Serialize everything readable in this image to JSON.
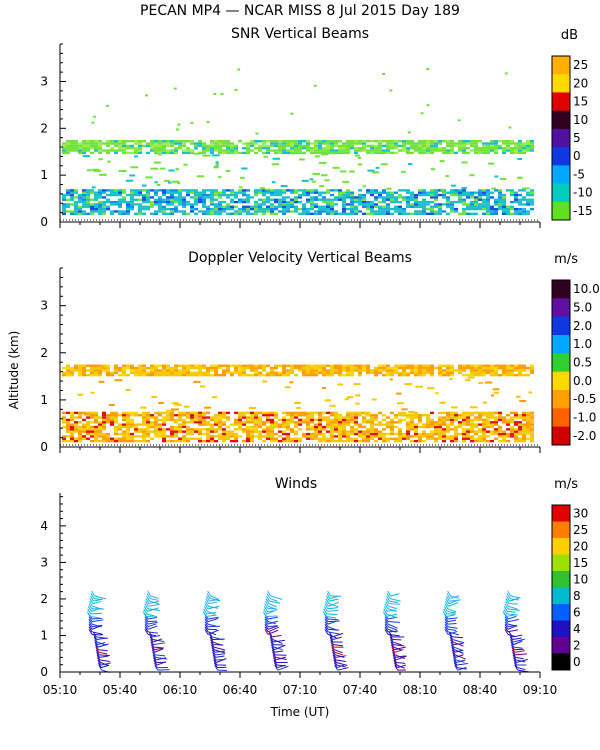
{
  "header": {
    "title": "PECAN MP4 — NCAR MISS    8 Jul 2015 Day 189"
  },
  "colors": {
    "snr_green": "#6fe33b",
    "snr_teal": "#18c0c8",
    "snr_blue": "#1450e6",
    "dop_yellow": "#f5c800",
    "dop_orange": "#ff9a00",
    "dop_red": "#e01010"
  },
  "chart_data": [
    {
      "type": "heatmap",
      "title": "SNR Vertical Beams",
      "ylabel": "",
      "ylim": [
        0,
        3.8
      ],
      "yticks": [
        "0",
        "1",
        "2",
        "3"
      ],
      "xlabel": "",
      "colorbar": {
        "unit": "dB",
        "labels": [
          "25",
          "20",
          "15",
          "10",
          "5",
          "0",
          "-5",
          "-10",
          "-15"
        ],
        "colors": [
          "#ffb000",
          "#ffd800",
          "#e00000",
          "#300020",
          "#5010a0",
          "#1038e0",
          "#00a8ff",
          "#00ccc0",
          "#60e020"
        ]
      },
      "layers": [
        {
          "name": "lower return layer",
          "bottom_km": 0.15,
          "top_km": 0.7,
          "dominant": "teal/blue"
        },
        {
          "name": "upper return layer",
          "bottom_km": 1.45,
          "top_km": 1.75,
          "dominant": "green"
        }
      ]
    },
    {
      "type": "heatmap",
      "title": "Doppler Velocity Vertical Beams",
      "ylabel": "Altitude (km)",
      "ylim": [
        0,
        3.8
      ],
      "yticks": [
        "0",
        "1",
        "2",
        "3"
      ],
      "colorbar": {
        "unit": "m/s",
        "labels": [
          "10.0",
          "5.0",
          "2.0",
          "1.0",
          "0.5",
          "0.0",
          "-0.5",
          "-1.0",
          "-2.0"
        ],
        "colors": [
          "#300020",
          "#6010a0",
          "#1038e0",
          "#00a8ff",
          "#30d030",
          "#ffd800",
          "#ffa000",
          "#ff6000",
          "#d00000"
        ]
      },
      "layers": [
        {
          "name": "lower return layer",
          "bottom_km": 0.1,
          "top_km": 0.75,
          "dominant": "yellow/orange"
        },
        {
          "name": "upper return layer",
          "bottom_km": 1.5,
          "top_km": 1.75,
          "dominant": "yellow"
        }
      ]
    },
    {
      "type": "scatter",
      "title": "Winds",
      "xlabel": "Time (UT)",
      "ylabel": "",
      "ylim": [
        0,
        4.9
      ],
      "yticks": [
        "0",
        "1",
        "2",
        "3",
        "4"
      ],
      "x": [
        "05:10",
        "05:40",
        "06:10",
        "06:40",
        "07:10",
        "07:40",
        "08:10",
        "08:40",
        "09:10"
      ],
      "xlim": [
        "05:10",
        "09:10"
      ],
      "colorbar": {
        "unit": "m/s",
        "labels": [
          "30",
          "25",
          "20",
          "15",
          "10",
          "8",
          "6",
          "4",
          "2",
          "0"
        ],
        "colors": [
          "#e00000",
          "#ff8000",
          "#ffd000",
          "#a0e000",
          "#30c030",
          "#00b8d0",
          "#0060ff",
          "#2010c0",
          "#600090",
          "#000000"
        ]
      },
      "profile_times": [
        "05:27",
        "05:55",
        "06:25",
        "06:55",
        "07:25",
        "07:55",
        "08:25",
        "08:55"
      ],
      "profile_top_km": 2.1
    }
  ]
}
